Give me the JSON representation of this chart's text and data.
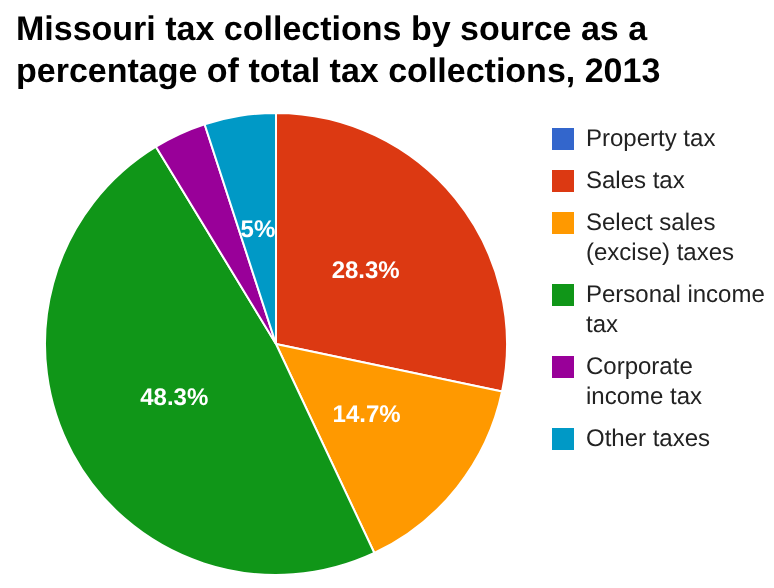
{
  "chart_data": {
    "type": "pie",
    "title": "Missouri tax collections by source as a percentage of total tax collections, 2013",
    "categories": [
      "Property tax",
      "Sales tax",
      "Select sales (excise) taxes",
      "Personal income tax",
      "Corporate income tax",
      "Other taxes"
    ],
    "values": [
      null,
      28.3,
      14.7,
      48.3,
      3.7,
      5
    ],
    "colors": [
      "#3366cc",
      "#dc3912",
      "#ff9900",
      "#109618",
      "#990099",
      "#0099c6"
    ],
    "value_labels": [
      null,
      "28.3%",
      "14.7%",
      "48.3%",
      null,
      "5%"
    ],
    "legend": "right"
  }
}
